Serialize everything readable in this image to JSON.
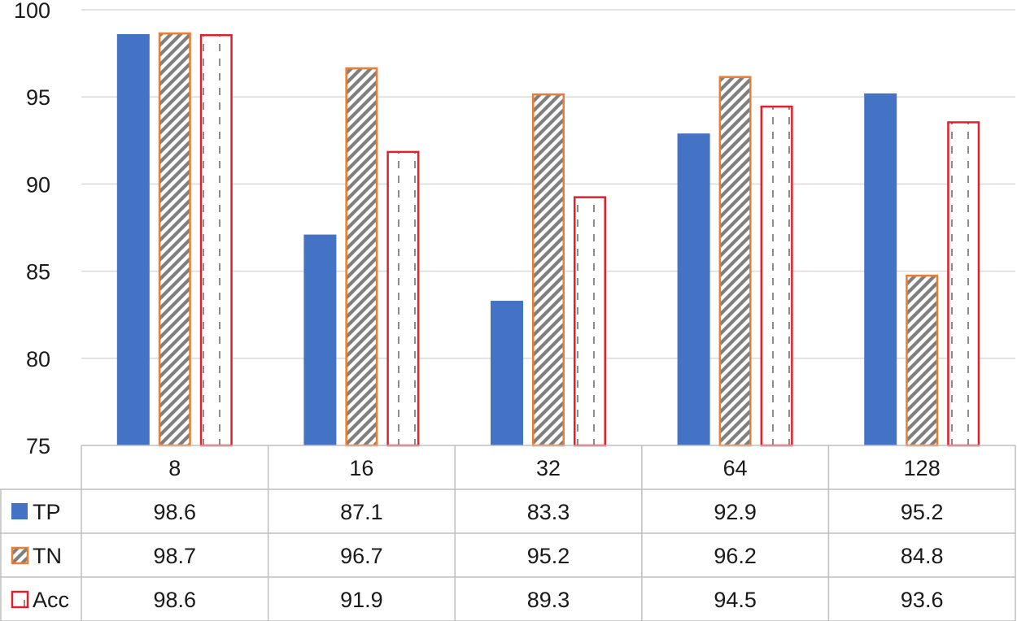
{
  "chart_data": {
    "type": "bar",
    "title": "",
    "xlabel": "",
    "ylabel": "",
    "categories": [
      "8",
      "16",
      "32",
      "64",
      "128"
    ],
    "ylim": [
      75,
      100
    ],
    "yticks": [
      "75",
      "80",
      "85",
      "90",
      "95",
      "100"
    ],
    "grid": true,
    "legend": "data-table-left",
    "series": [
      {
        "name": "TP",
        "values": [
          98.6,
          87.1,
          83.3,
          92.9,
          95.2
        ],
        "display": [
          "98.6",
          "87.1",
          "83.3",
          "92.9",
          "95.2"
        ],
        "fill": "#4472C4",
        "stroke": "#4472C4",
        "pattern": "solid"
      },
      {
        "name": "TN",
        "values": [
          98.7,
          96.7,
          95.2,
          96.2,
          84.8
        ],
        "display": [
          "98.7",
          "96.7",
          "95.2",
          "96.2",
          "84.8"
        ],
        "fill": "#808080",
        "stroke": "#ED7D31",
        "pattern": "diagonal"
      },
      {
        "name": "Acc",
        "values": [
          98.6,
          91.9,
          89.3,
          94.5,
          93.6
        ],
        "display": [
          "98.6",
          "91.9",
          "89.3",
          "94.5",
          "93.6"
        ],
        "fill": "#808080",
        "stroke": "#E0212C",
        "pattern": "dashed"
      }
    ]
  }
}
